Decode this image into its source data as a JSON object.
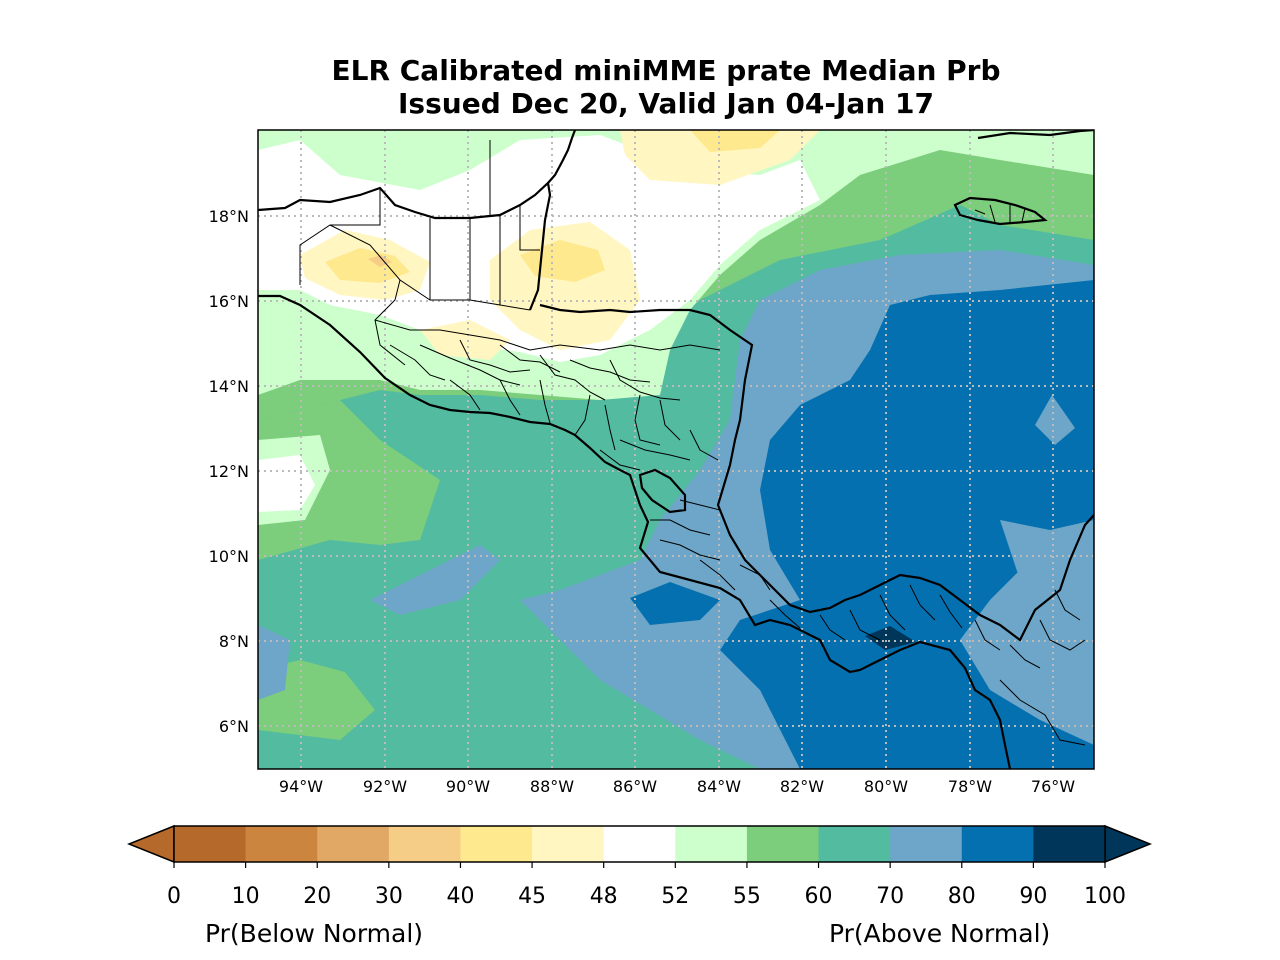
{
  "title": {
    "line1": "ELR Calibrated miniMME prate Median Prb",
    "line2": "Issued Dec 20, Valid Jan 04-Jan 17"
  },
  "axes": {
    "lon_labels": [
      "94°W",
      "92°W",
      "90°W",
      "88°W",
      "86°W",
      "84°W",
      "82°W",
      "80°W",
      "78°W",
      "76°W"
    ],
    "lat_labels": [
      "18°N",
      "16°N",
      "14°N",
      "12°N",
      "10°N",
      "8°N",
      "6°N"
    ],
    "lon_range": [
      -95.0,
      -75.3
    ],
    "lat_range": [
      5.0,
      20.0
    ],
    "gridlines": "dotted"
  },
  "colorbar": {
    "ticks": [
      "0",
      "10",
      "20",
      "30",
      "40",
      "45",
      "48",
      "52",
      "55",
      "60",
      "70",
      "80",
      "90",
      "100"
    ],
    "colors": [
      "#b5692a",
      "#cb853f",
      "#e0a765",
      "#f5cd86",
      "#ffe98e",
      "#fff6c1",
      "#ffffff",
      "#ccffcc",
      "#7ccd7c",
      "#52bba0",
      "#6da6c8",
      "#0570b0",
      "#003659"
    ],
    "under_color": "#b5692a",
    "over_color": "#003659",
    "below_label": "Pr(Below Normal)",
    "above_label": "Pr(Above Normal)"
  }
}
